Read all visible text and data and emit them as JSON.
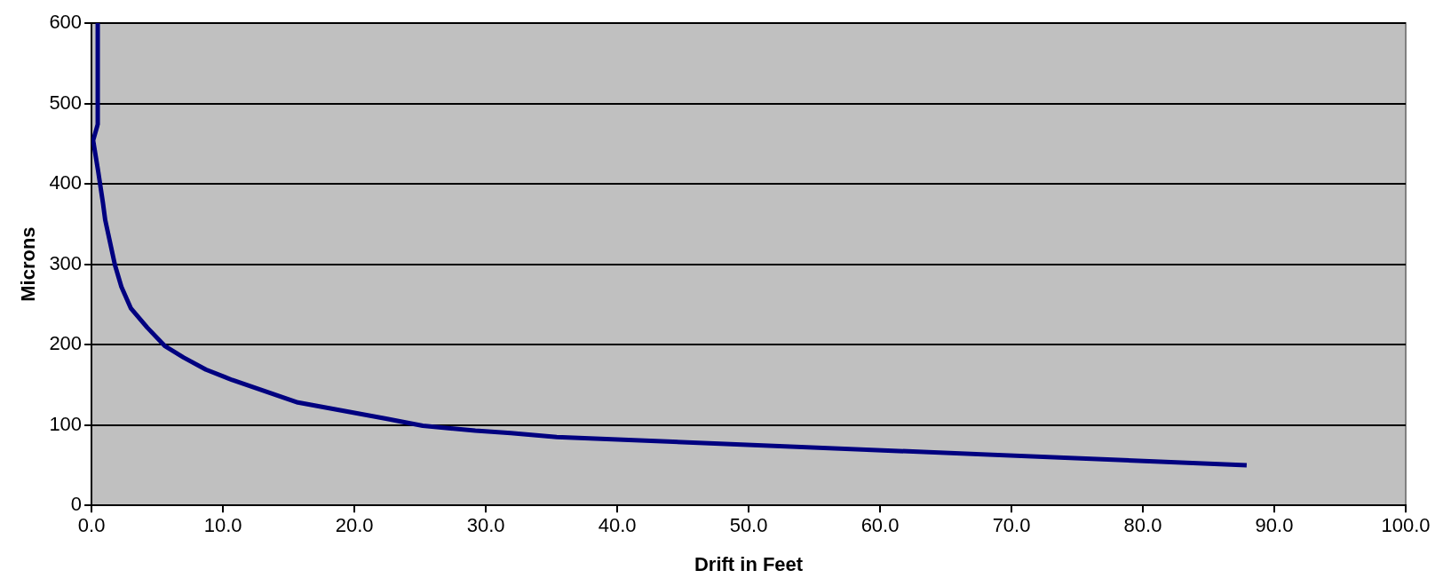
{
  "chart_data": {
    "type": "line",
    "xlabel": "Drift in Feet",
    "ylabel": "Microns",
    "x": [
      0.47,
      0.47,
      0.12,
      0.5,
      0.86,
      1.04,
      1.78,
      2.27,
      3.0,
      4.25,
      5.6,
      7.0,
      8.7,
      10.7,
      15.7,
      22.4,
      25.2,
      29.2,
      31.9,
      35.4,
      87.9
    ],
    "series": [
      {
        "color": "#000080",
        "values": [
          600,
          474,
          454,
          416,
          377,
          355,
          299,
          272,
          245,
          221,
          198,
          184,
          169,
          156,
          128,
          108,
          99,
          93,
          90,
          85,
          50
        ]
      }
    ],
    "xlim": [
      0,
      100
    ],
    "xticks": [
      {
        "value": 0,
        "label": "0.0"
      },
      {
        "value": 10,
        "label": "10.0"
      },
      {
        "value": 20,
        "label": "20.0"
      },
      {
        "value": 30,
        "label": "30.0"
      },
      {
        "value": 40,
        "label": "40.0"
      },
      {
        "value": 50,
        "label": "50.0"
      },
      {
        "value": 60,
        "label": "60.0"
      },
      {
        "value": 70,
        "label": "70.0"
      },
      {
        "value": 80,
        "label": "80.0"
      },
      {
        "value": 90,
        "label": "90.0"
      },
      {
        "value": 100,
        "label": "100.0"
      }
    ],
    "ylim": [
      0,
      600
    ],
    "yticks": [
      0,
      100,
      200,
      300,
      400,
      500,
      600
    ],
    "grid": "y",
    "legend": false,
    "marker": "none",
    "line_style": "solid"
  }
}
